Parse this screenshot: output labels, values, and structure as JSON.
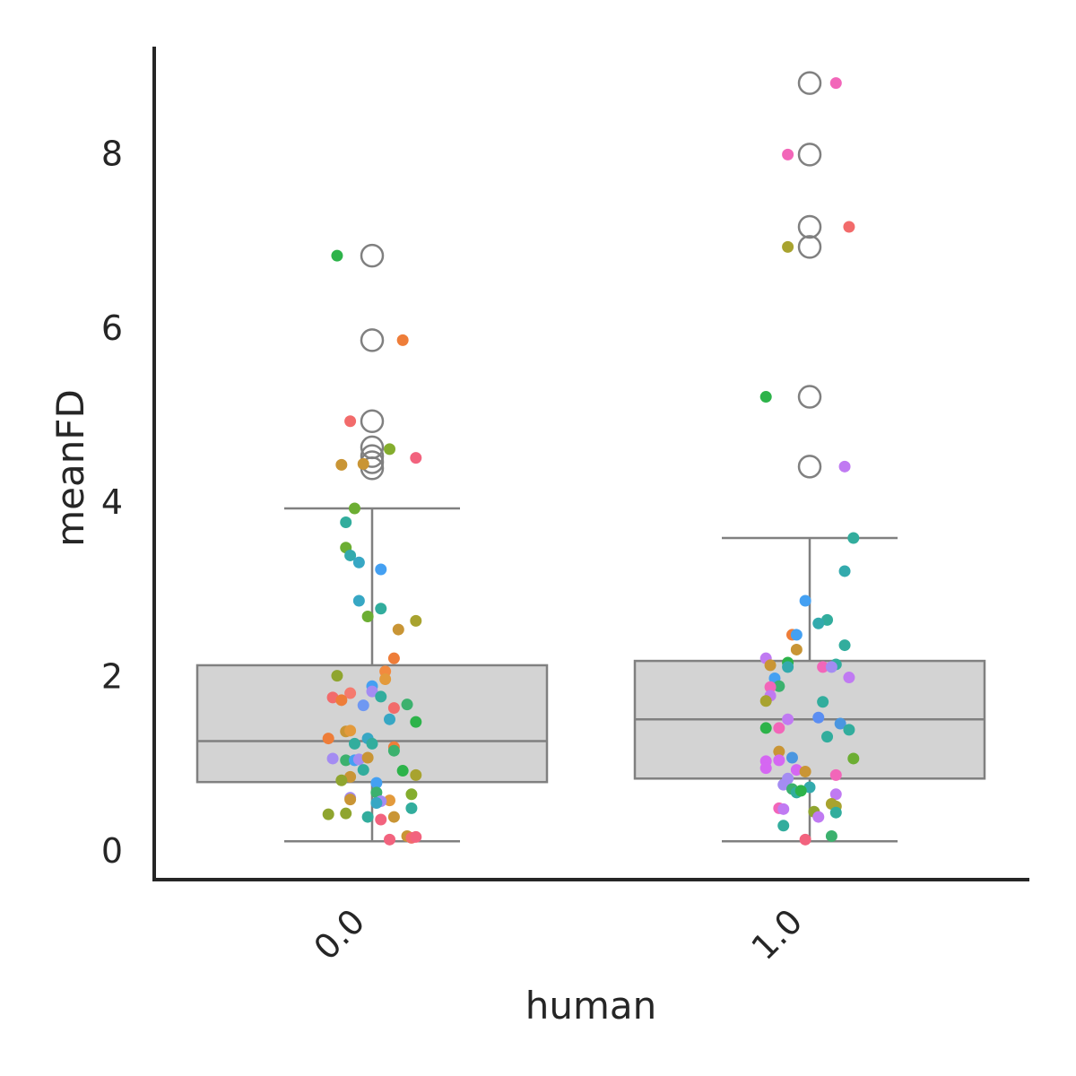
{
  "chart_data": {
    "type": "box",
    "xlabel": "human",
    "ylabel": "meanFD",
    "categories": [
      "0.0",
      "1.0"
    ],
    "ylim": [
      -0.35,
      9.25
    ],
    "yticks": [
      0,
      2,
      4,
      6,
      8
    ],
    "grid": false,
    "legend": "none",
    "box_color": "#d3d3d3",
    "line_color": "#808080",
    "boxes": [
      {
        "category": "0.0",
        "whisker_low": 0.1,
        "q1": 0.78,
        "median": 1.25,
        "q3": 2.12,
        "whisker_high": 3.92,
        "outliers": [
          4.38,
          4.45,
          4.52,
          4.62,
          4.92,
          5.85,
          6.82
        ]
      },
      {
        "category": "1.0",
        "whisker_low": 0.1,
        "q1": 0.82,
        "median": 1.5,
        "q3": 2.17,
        "whisker_high": 3.58,
        "outliers": [
          4.4,
          5.2,
          6.92,
          7.15,
          7.98,
          8.8
        ]
      }
    ],
    "points": [
      {
        "x": 0,
        "jitter": -0.08,
        "y": 6.82,
        "color": "#2db34a"
      },
      {
        "x": 0,
        "jitter": 0.07,
        "y": 5.85,
        "color": "#ee7d39"
      },
      {
        "x": 0,
        "jitter": -0.05,
        "y": 4.92,
        "color": "#f26b6b"
      },
      {
        "x": 0,
        "jitter": 0.04,
        "y": 4.6,
        "color": "#84ad2e"
      },
      {
        "x": 0,
        "jitter": 0.1,
        "y": 4.5,
        "color": "#f2637e"
      },
      {
        "x": 0,
        "jitter": -0.07,
        "y": 4.42,
        "color": "#c99535"
      },
      {
        "x": 0,
        "jitter": -0.02,
        "y": 4.43,
        "color": "#c99535"
      },
      {
        "x": 0,
        "jitter": -0.04,
        "y": 3.92,
        "color": "#6cae33"
      },
      {
        "x": 0,
        "jitter": -0.06,
        "y": 3.76,
        "color": "#32ad9d"
      },
      {
        "x": 0,
        "jitter": -0.06,
        "y": 3.47,
        "color": "#6cae33"
      },
      {
        "x": 0,
        "jitter": -0.05,
        "y": 3.38,
        "color": "#33aaad"
      },
      {
        "x": 0,
        "jitter": -0.03,
        "y": 3.3,
        "color": "#37a7c4"
      },
      {
        "x": 0,
        "jitter": 0.02,
        "y": 3.22,
        "color": "#44a0f2"
      },
      {
        "x": 0,
        "jitter": -0.03,
        "y": 2.86,
        "color": "#37a7c4"
      },
      {
        "x": 0,
        "jitter": 0.02,
        "y": 2.77,
        "color": "#32ad9d"
      },
      {
        "x": 0,
        "jitter": -0.01,
        "y": 2.68,
        "color": "#6cae33"
      },
      {
        "x": 0,
        "jitter": 0.1,
        "y": 2.63,
        "color": "#a8a32f"
      },
      {
        "x": 0,
        "jitter": 0.06,
        "y": 2.53,
        "color": "#c99535"
      },
      {
        "x": 0,
        "jitter": 0.05,
        "y": 2.2,
        "color": "#ee7d39"
      },
      {
        "x": 0,
        "jitter": 0.03,
        "y": 2.05,
        "color": "#f28a3f"
      },
      {
        "x": 0,
        "jitter": -0.08,
        "y": 2.0,
        "color": "#8fa52f"
      },
      {
        "x": 0,
        "jitter": 0.03,
        "y": 1.96,
        "color": "#e39a3c"
      },
      {
        "x": 0,
        "jitter": 0.0,
        "y": 1.88,
        "color": "#44a0f2"
      },
      {
        "x": 0,
        "jitter": -0.05,
        "y": 1.8,
        "color": "#f57a6e"
      },
      {
        "x": 0,
        "jitter": 0.0,
        "y": 1.82,
        "color": "#a48cf2"
      },
      {
        "x": 0,
        "jitter": -0.09,
        "y": 1.75,
        "color": "#f26b6b"
      },
      {
        "x": 0,
        "jitter": -0.07,
        "y": 1.72,
        "color": "#ee7d39"
      },
      {
        "x": 0,
        "jitter": 0.02,
        "y": 1.76,
        "color": "#32ad9d"
      },
      {
        "x": 0,
        "jitter": 0.08,
        "y": 1.67,
        "color": "#3cb16e"
      },
      {
        "x": 0,
        "jitter": -0.02,
        "y": 1.66,
        "color": "#6f98f2"
      },
      {
        "x": 0,
        "jitter": 0.05,
        "y": 1.63,
        "color": "#f26b6b"
      },
      {
        "x": 0,
        "jitter": 0.04,
        "y": 1.5,
        "color": "#37a7c4"
      },
      {
        "x": 0,
        "jitter": 0.1,
        "y": 1.47,
        "color": "#2db34a"
      },
      {
        "x": 0,
        "jitter": -0.06,
        "y": 1.36,
        "color": "#c99535"
      },
      {
        "x": 0,
        "jitter": -0.05,
        "y": 1.37,
        "color": "#e39a3c"
      },
      {
        "x": 0,
        "jitter": -0.1,
        "y": 1.28,
        "color": "#ee7d39"
      },
      {
        "x": 0,
        "jitter": -0.04,
        "y": 1.22,
        "color": "#32ad9d"
      },
      {
        "x": 0,
        "jitter": -0.01,
        "y": 1.28,
        "color": "#37a7c4"
      },
      {
        "x": 0,
        "jitter": 0.0,
        "y": 1.22,
        "color": "#32ad9d"
      },
      {
        "x": 0,
        "jitter": 0.05,
        "y": 1.18,
        "color": "#ee7d39"
      },
      {
        "x": 0,
        "jitter": 0.05,
        "y": 1.14,
        "color": "#3cb16e"
      },
      {
        "x": 0,
        "jitter": -0.09,
        "y": 1.05,
        "color": "#a48cf2"
      },
      {
        "x": 0,
        "jitter": -0.06,
        "y": 1.03,
        "color": "#3cb16e"
      },
      {
        "x": 0,
        "jitter": -0.04,
        "y": 1.03,
        "color": "#44a0f2"
      },
      {
        "x": 0,
        "jitter": -0.03,
        "y": 1.04,
        "color": "#a48cf2"
      },
      {
        "x": 0,
        "jitter": -0.01,
        "y": 1.06,
        "color": "#c99535"
      },
      {
        "x": 0,
        "jitter": -0.02,
        "y": 0.92,
        "color": "#32ad9d"
      },
      {
        "x": 0,
        "jitter": 0.07,
        "y": 0.91,
        "color": "#2db34a"
      },
      {
        "x": 0,
        "jitter": 0.1,
        "y": 0.86,
        "color": "#a8a32f"
      },
      {
        "x": 0,
        "jitter": -0.05,
        "y": 0.84,
        "color": "#c99535"
      },
      {
        "x": 0,
        "jitter": -0.07,
        "y": 0.8,
        "color": "#8fa52f"
      },
      {
        "x": 0,
        "jitter": 0.01,
        "y": 0.77,
        "color": "#44a0f2"
      },
      {
        "x": 0,
        "jitter": 0.01,
        "y": 0.66,
        "color": "#3cb16e"
      },
      {
        "x": 0,
        "jitter": 0.09,
        "y": 0.64,
        "color": "#84ad2e"
      },
      {
        "x": 0,
        "jitter": -0.05,
        "y": 0.6,
        "color": "#a48cf2"
      },
      {
        "x": 0,
        "jitter": -0.05,
        "y": 0.58,
        "color": "#c99535"
      },
      {
        "x": 0,
        "jitter": 0.04,
        "y": 0.57,
        "color": "#e39a3c"
      },
      {
        "x": 0,
        "jitter": 0.02,
        "y": 0.56,
        "color": "#a48cf2"
      },
      {
        "x": 0,
        "jitter": 0.01,
        "y": 0.54,
        "color": "#37a7c4"
      },
      {
        "x": 0,
        "jitter": 0.09,
        "y": 0.48,
        "color": "#32ad9d"
      },
      {
        "x": 0,
        "jitter": -0.1,
        "y": 0.41,
        "color": "#8fa52f"
      },
      {
        "x": 0,
        "jitter": -0.06,
        "y": 0.42,
        "color": "#8fa52f"
      },
      {
        "x": 0,
        "jitter": -0.01,
        "y": 0.38,
        "color": "#32ad9d"
      },
      {
        "x": 0,
        "jitter": 0.02,
        "y": 0.35,
        "color": "#f2637e"
      },
      {
        "x": 0,
        "jitter": 0.05,
        "y": 0.38,
        "color": "#c99535"
      },
      {
        "x": 0,
        "jitter": 0.08,
        "y": 0.16,
        "color": "#c99535"
      },
      {
        "x": 0,
        "jitter": 0.09,
        "y": 0.14,
        "color": "#f26b6b"
      },
      {
        "x": 0,
        "jitter": 0.1,
        "y": 0.15,
        "color": "#f2637e"
      },
      {
        "x": 0,
        "jitter": 0.04,
        "y": 0.12,
        "color": "#f2637e"
      },
      {
        "x": 1,
        "jitter": 0.06,
        "y": 8.8,
        "color": "#f266b9"
      },
      {
        "x": 1,
        "jitter": -0.05,
        "y": 7.98,
        "color": "#f266b9"
      },
      {
        "x": 1,
        "jitter": 0.09,
        "y": 7.15,
        "color": "#f26b6b"
      },
      {
        "x": 1,
        "jitter": -0.05,
        "y": 6.92,
        "color": "#a8a32f"
      },
      {
        "x": 1,
        "jitter": -0.1,
        "y": 5.2,
        "color": "#2db34a"
      },
      {
        "x": 1,
        "jitter": 0.08,
        "y": 4.4,
        "color": "#c07af2"
      },
      {
        "x": 1,
        "jitter": 0.1,
        "y": 3.58,
        "color": "#32ad9d"
      },
      {
        "x": 1,
        "jitter": 0.08,
        "y": 3.2,
        "color": "#33aaad"
      },
      {
        "x": 1,
        "jitter": -0.01,
        "y": 2.86,
        "color": "#44a0f2"
      },
      {
        "x": 1,
        "jitter": 0.04,
        "y": 2.64,
        "color": "#32ad9d"
      },
      {
        "x": 1,
        "jitter": 0.02,
        "y": 2.6,
        "color": "#33aaad"
      },
      {
        "x": 1,
        "jitter": -0.04,
        "y": 2.47,
        "color": "#ee7d39"
      },
      {
        "x": 1,
        "jitter": -0.03,
        "y": 2.47,
        "color": "#44a0f2"
      },
      {
        "x": 1,
        "jitter": -0.03,
        "y": 2.3,
        "color": "#c99535"
      },
      {
        "x": 1,
        "jitter": 0.08,
        "y": 2.35,
        "color": "#32ad9d"
      },
      {
        "x": 1,
        "jitter": -0.1,
        "y": 2.2,
        "color": "#c07af2"
      },
      {
        "x": 1,
        "jitter": -0.09,
        "y": 2.12,
        "color": "#c99535"
      },
      {
        "x": 1,
        "jitter": -0.05,
        "y": 2.15,
        "color": "#2db34a"
      },
      {
        "x": 1,
        "jitter": -0.05,
        "y": 2.1,
        "color": "#33aaad"
      },
      {
        "x": 1,
        "jitter": 0.03,
        "y": 2.1,
        "color": "#f266b9"
      },
      {
        "x": 1,
        "jitter": 0.06,
        "y": 2.13,
        "color": "#32ad9d"
      },
      {
        "x": 1,
        "jitter": 0.05,
        "y": 2.1,
        "color": "#a48cf2"
      },
      {
        "x": 1,
        "jitter": -0.08,
        "y": 1.97,
        "color": "#44a0f2"
      },
      {
        "x": 1,
        "jitter": -0.07,
        "y": 1.88,
        "color": "#3cb16e"
      },
      {
        "x": 1,
        "jitter": -0.09,
        "y": 1.87,
        "color": "#f266b9"
      },
      {
        "x": 1,
        "jitter": 0.09,
        "y": 1.98,
        "color": "#c07af2"
      },
      {
        "x": 1,
        "jitter": -0.09,
        "y": 1.77,
        "color": "#c07af2"
      },
      {
        "x": 1,
        "jitter": -0.1,
        "y": 1.71,
        "color": "#a8a32f"
      },
      {
        "x": 1,
        "jitter": 0.03,
        "y": 1.7,
        "color": "#32ad9d"
      },
      {
        "x": 1,
        "jitter": -0.05,
        "y": 1.5,
        "color": "#c07af2"
      },
      {
        "x": 1,
        "jitter": 0.02,
        "y": 1.52,
        "color": "#5b8ef2"
      },
      {
        "x": 1,
        "jitter": 0.07,
        "y": 1.45,
        "color": "#4a96e0"
      },
      {
        "x": 1,
        "jitter": 0.09,
        "y": 1.38,
        "color": "#32ad9d"
      },
      {
        "x": 1,
        "jitter": -0.1,
        "y": 1.4,
        "color": "#2db34a"
      },
      {
        "x": 1,
        "jitter": -0.07,
        "y": 1.4,
        "color": "#f266b9"
      },
      {
        "x": 1,
        "jitter": 0.04,
        "y": 1.3,
        "color": "#32ad9d"
      },
      {
        "x": 1,
        "jitter": -0.07,
        "y": 1.13,
        "color": "#c99535"
      },
      {
        "x": 1,
        "jitter": -0.04,
        "y": 1.06,
        "color": "#4a96e0"
      },
      {
        "x": 1,
        "jitter": -0.1,
        "y": 1.02,
        "color": "#d567f2"
      },
      {
        "x": 1,
        "jitter": -0.07,
        "y": 1.03,
        "color": "#d567f2"
      },
      {
        "x": 1,
        "jitter": 0.1,
        "y": 1.05,
        "color": "#6cae33"
      },
      {
        "x": 1,
        "jitter": -0.1,
        "y": 0.94,
        "color": "#d567f2"
      },
      {
        "x": 1,
        "jitter": -0.03,
        "y": 0.92,
        "color": "#d567f2"
      },
      {
        "x": 1,
        "jitter": -0.01,
        "y": 0.9,
        "color": "#c99535"
      },
      {
        "x": 1,
        "jitter": 0.06,
        "y": 0.86,
        "color": "#f266b9"
      },
      {
        "x": 1,
        "jitter": -0.05,
        "y": 0.82,
        "color": "#a48cf2"
      },
      {
        "x": 1,
        "jitter": -0.06,
        "y": 0.75,
        "color": "#a48cf2"
      },
      {
        "x": 1,
        "jitter": -0.04,
        "y": 0.7,
        "color": "#3cb16e"
      },
      {
        "x": 1,
        "jitter": -0.03,
        "y": 0.66,
        "color": "#32ad9d"
      },
      {
        "x": 1,
        "jitter": 0.0,
        "y": 0.72,
        "color": "#33aaad"
      },
      {
        "x": 1,
        "jitter": -0.02,
        "y": 0.68,
        "color": "#2db34a"
      },
      {
        "x": 1,
        "jitter": 0.06,
        "y": 0.64,
        "color": "#c07af2"
      },
      {
        "x": 1,
        "jitter": 0.05,
        "y": 0.53,
        "color": "#a8a32f"
      },
      {
        "x": 1,
        "jitter": 0.06,
        "y": 0.5,
        "color": "#a8a32f"
      },
      {
        "x": 1,
        "jitter": -0.07,
        "y": 0.48,
        "color": "#f266b9"
      },
      {
        "x": 1,
        "jitter": -0.06,
        "y": 0.47,
        "color": "#c07af2"
      },
      {
        "x": 1,
        "jitter": 0.01,
        "y": 0.44,
        "color": "#8fa52f"
      },
      {
        "x": 1,
        "jitter": 0.06,
        "y": 0.43,
        "color": "#32ad9d"
      },
      {
        "x": 1,
        "jitter": 0.02,
        "y": 0.38,
        "color": "#c07af2"
      },
      {
        "x": 1,
        "jitter": -0.06,
        "y": 0.28,
        "color": "#32ad9d"
      },
      {
        "x": 1,
        "jitter": 0.05,
        "y": 0.16,
        "color": "#3cb16e"
      },
      {
        "x": 1,
        "jitter": -0.01,
        "y": 0.12,
        "color": "#f2637e"
      }
    ]
  }
}
